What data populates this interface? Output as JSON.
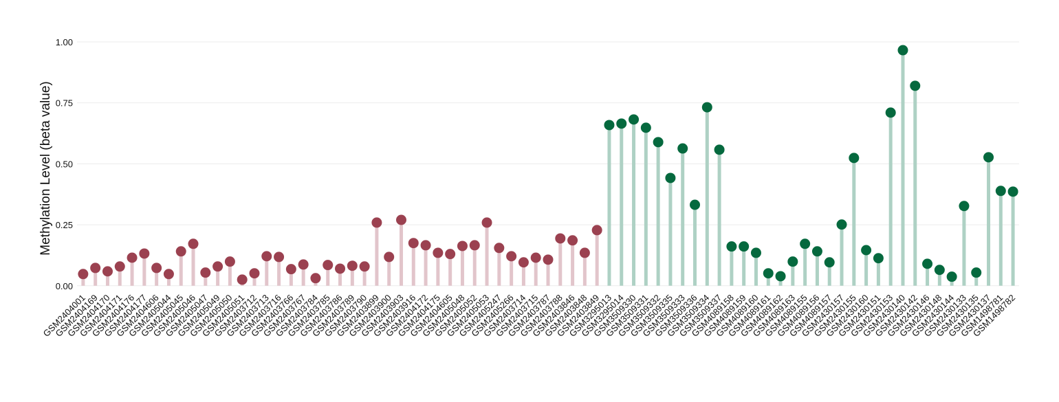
{
  "chart_data": {
    "type": "lollipop",
    "y_label": "Methylation Level (beta value)",
    "categories": [
      "GSM2404001",
      "GSM2404169",
      "GSM2404170",
      "GSM2404171",
      "GSM2404176",
      "GSM2404177",
      "GSM2404606",
      "GSM2405044",
      "GSM2405045",
      "GSM2405046",
      "GSM2405047",
      "GSM2405049",
      "GSM2405050",
      "GSM2405051",
      "GSM2403712",
      "GSM2403713",
      "GSM2403716",
      "GSM2403766",
      "GSM2403767",
      "GSM2403784",
      "GSM2403785",
      "GSM2403786",
      "GSM2403789",
      "GSM2403790",
      "GSM2403899",
      "GSM2403900",
      "GSM2403903",
      "GSM2403916",
      "GSM2404172",
      "GSM2404175",
      "GSM2404605",
      "GSM2405048",
      "GSM2405052",
      "GSM2405053",
      "GSM2405247",
      "GSM2405266",
      "GSM2403714",
      "GSM2403715",
      "GSM2403787",
      "GSM2403788",
      "GSM2403846",
      "GSM2403848",
      "GSM2403849",
      "GSM3295013",
      "GSM3295014",
      "GSM3509330",
      "GSM3509331",
      "GSM3509332",
      "GSM3509335",
      "GSM3509333",
      "GSM3509336",
      "GSM3509334",
      "GSM3509337",
      "GSM4089158",
      "GSM4089159",
      "GSM4089160",
      "GSM4089161",
      "GSM4089162",
      "GSM4089163",
      "GSM4089155",
      "GSM4089156",
      "GSM4089157",
      "GSM2430157",
      "GSM2430155",
      "GSM2430160",
      "GSM2430151",
      "GSM2430153",
      "GSM2430140",
      "GSM2430142",
      "GSM2430146",
      "GSM2430148",
      "GSM2430144",
      "GSM2430133",
      "GSM2430135",
      "GSM2430137",
      "GSM1498781",
      "GSM1498782"
    ],
    "series": [
      {
        "color": "#9b4150",
        "stem_color": "#e2c5cb",
        "values": [
          0.048,
          0.073,
          0.059,
          0.079,
          0.115,
          0.132,
          0.073,
          0.048,
          0.141,
          0.172,
          0.054,
          0.079,
          0.099,
          0.025,
          0.051,
          0.121,
          0.118,
          0.068,
          0.087,
          0.031,
          0.085,
          0.07,
          0.082,
          0.079,
          0.259,
          0.118,
          0.27,
          0.175,
          0.166,
          0.135,
          0.13,
          0.163,
          0.166,
          0.259,
          0.155,
          0.121,
          0.096,
          0.115,
          0.107,
          0.194,
          0.186,
          0.135,
          0.228,
          null,
          null,
          null,
          null,
          null,
          null,
          null,
          null,
          null,
          null,
          null,
          null,
          null,
          null,
          null,
          null,
          null,
          null,
          null,
          null,
          null,
          null,
          null,
          null,
          null,
          null,
          null,
          null,
          null,
          null,
          null,
          null,
          null,
          null
        ]
      },
      {
        "color": "#05693e",
        "stem_color": "#aed1c4",
        "values": [
          null,
          null,
          null,
          null,
          null,
          null,
          null,
          null,
          null,
          null,
          null,
          null,
          null,
          null,
          null,
          null,
          null,
          null,
          null,
          null,
          null,
          null,
          null,
          null,
          null,
          null,
          null,
          null,
          null,
          null,
          null,
          null,
          null,
          null,
          null,
          null,
          null,
          null,
          null,
          null,
          null,
          null,
          null,
          0.659,
          0.665,
          0.682,
          0.648,
          0.589,
          0.442,
          0.563,
          0.332,
          0.732,
          0.558,
          0.161,
          0.161,
          0.135,
          0.051,
          0.039,
          0.099,
          0.172,
          0.141,
          0.096,
          0.251,
          0.524,
          0.146,
          0.113,
          0.71,
          0.966,
          0.82,
          0.09,
          0.065,
          0.037,
          0.327,
          0.054,
          0.527,
          0.389,
          0.386
        ]
      }
    ],
    "ylim": [
      -0.04,
      1.12
    ],
    "yticks": [
      {
        "value": 0,
        "label": "0.00"
      },
      {
        "value": 0.25,
        "label": "0.25"
      },
      {
        "value": 0.5,
        "label": "0.50"
      },
      {
        "value": 0.75,
        "label": "0.75"
      },
      {
        "value": 1,
        "label": "1.00"
      }
    ],
    "grid": true
  }
}
